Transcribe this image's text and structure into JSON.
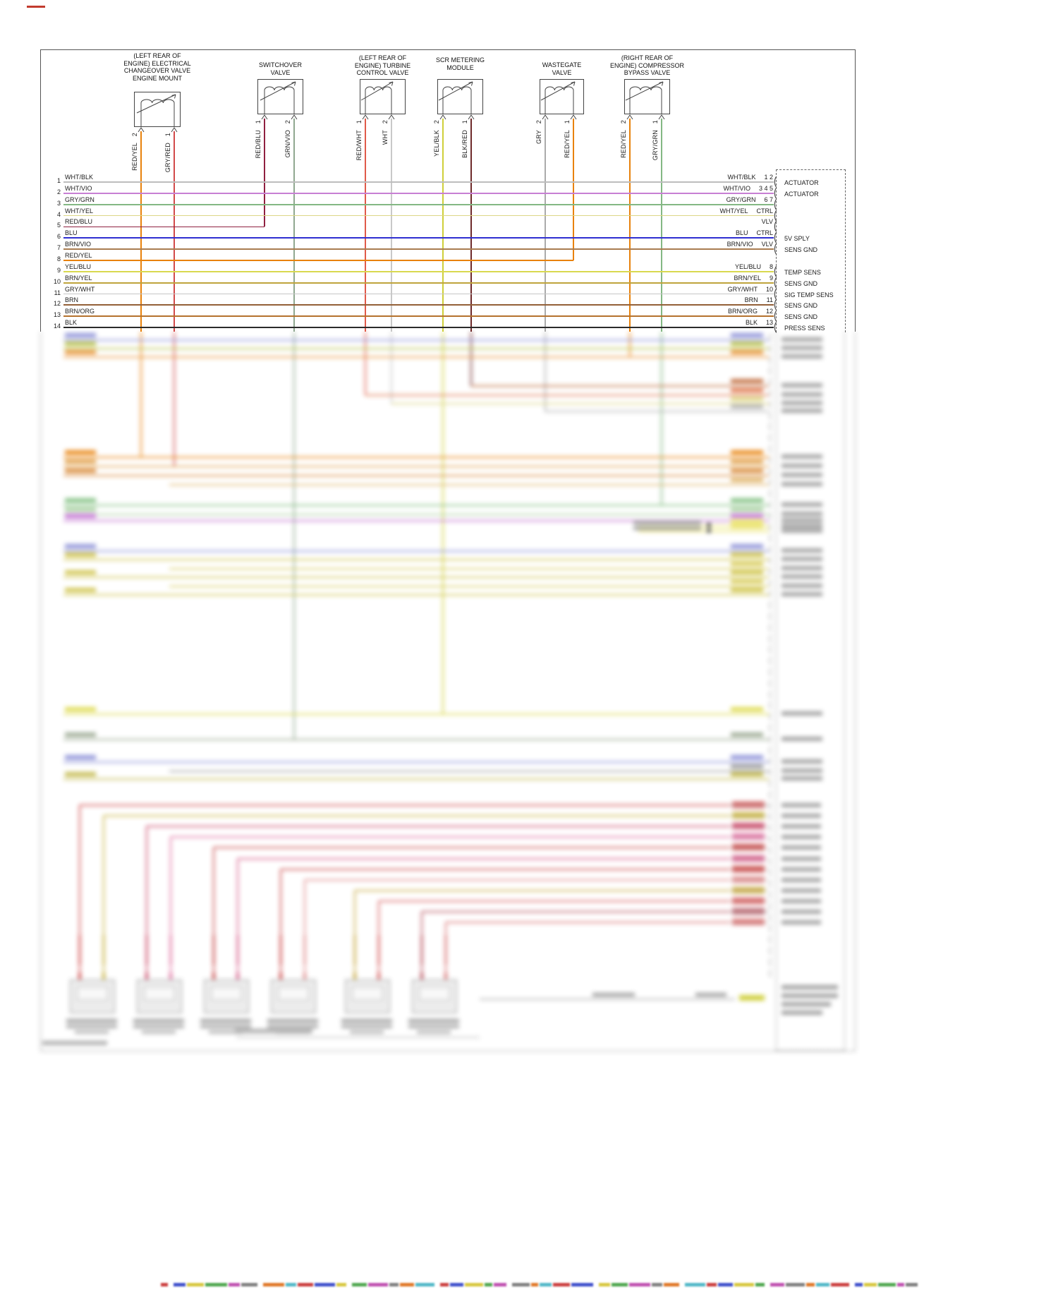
{
  "components": [
    {
      "title": "(LEFT REAR OF\nENGINE) ELECTRICAL\nCHANGEOVER VALVE\nENGINE MOUNT",
      "pins": [
        {
          "num": "2",
          "wire": "RED/YEL"
        },
        {
          "num": "1",
          "wire": "GRY/RED"
        }
      ]
    },
    {
      "title": "SWITCHOVER\nVALVE",
      "pins": [
        {
          "num": "1",
          "wire": "RED/BLU"
        },
        {
          "num": "2",
          "wire": "GRN/VIO"
        }
      ]
    },
    {
      "title": "(LEFT REAR OF\nENGINE) TURBINE\nCONTROL VALVE",
      "pins": [
        {
          "num": "1",
          "wire": "RED/WHT"
        },
        {
          "num": "2",
          "wire": "WHT"
        }
      ]
    },
    {
      "title": "SCR METERING\nMODULE",
      "pins": [
        {
          "num": "2",
          "wire": "YEL/BLK"
        },
        {
          "num": "1",
          "wire": "BLK/RED"
        }
      ]
    },
    {
      "title": "WASTEGATE\nVALVE",
      "pins": [
        {
          "num": "2",
          "wire": "GRY"
        },
        {
          "num": "1",
          "wire": "RED/YEL"
        }
      ]
    },
    {
      "title": "(RIGHT REAR OF\nENGINE) COMPRESSOR\nBYPASS VALVE",
      "pins": [
        {
          "num": "2",
          "wire": "RED/YEL"
        },
        {
          "num": "1",
          "wire": "GRY/GRN"
        }
      ]
    }
  ],
  "left_connector": {
    "rows": [
      {
        "pin": "1",
        "wire": "WHT/BLK"
      },
      {
        "pin": "2",
        "wire": "WHT/VIO"
      },
      {
        "pin": "3",
        "wire": "GRY/GRN"
      },
      {
        "pin": "4",
        "wire": "WHT/YEL"
      },
      {
        "pin": "5",
        "wire": "RED/BLU"
      },
      {
        "pin": "6",
        "wire": "BLU"
      },
      {
        "pin": "7",
        "wire": "BRN/VIO"
      },
      {
        "pin": "8",
        "wire": "RED/YEL"
      },
      {
        "pin": "9",
        "wire": "YEL/BLU"
      },
      {
        "pin": "10",
        "wire": "BRN/YEL"
      },
      {
        "pin": "11",
        "wire": "GRY/WHT"
      },
      {
        "pin": "12",
        "wire": "BRN"
      },
      {
        "pin": "13",
        "wire": "BRN/ORG"
      },
      {
        "pin": "14",
        "wire": "BLK"
      }
    ]
  },
  "right_connector": {
    "rows": [
      {
        "wire": "WHT/BLK",
        "pin": "1 2",
        "function": "ACTUATOR"
      },
      {
        "wire": "WHT/VIO",
        "pin": "3 4 5",
        "function": "ACTUATOR"
      },
      {
        "wire": "GRY/GRN",
        "pin": "6 7",
        "function": ""
      },
      {
        "wire": "WHT/YEL",
        "pin": "CTRL",
        "function": ""
      },
      {
        "wire": "",
        "pin": "VLV",
        "function": ""
      },
      {
        "wire": "BLU",
        "pin": "CTRL",
        "function": "5V SPLY"
      },
      {
        "wire": "BRN/VIO",
        "pin": "VLV",
        "function": "SENS GND"
      },
      {
        "wire": "",
        "pin": "",
        "function": ""
      },
      {
        "wire": "YEL/BLU",
        "pin": "8",
        "function": "TEMP SENS"
      },
      {
        "wire": "BRN/YEL",
        "pin": "9",
        "function": "SENS GND"
      },
      {
        "wire": "GRY/WHT",
        "pin": "10",
        "function": "SIG TEMP SENS"
      },
      {
        "wire": "BRN",
        "pin": "11",
        "function": "SENS GND"
      },
      {
        "wire": "BRN/ORG",
        "pin": "12",
        "function": "SENS GND"
      },
      {
        "wire": "BLK",
        "pin": "13",
        "function": "PRESS SENS"
      }
    ]
  },
  "wire_colors": {
    "WHT/BLK": "#bdbdbd",
    "WHT/VIO": "#c77fd4",
    "GRY/GRN": "#84b884",
    "WHT/YEL": "#ddd687",
    "RED/BLU": "#8f2040",
    "BLU": "#2f2fd1",
    "BRN/VIO": "#a97c50",
    "RED/YEL": "#e8820c",
    "YEL/BLU": "#d9d94f",
    "BRN/YEL": "#bfa43c",
    "GRY/WHT": "#c6c6c6",
    "BRN": "#936037",
    "BRN/ORG": "#b5722e",
    "BLK": "#2b2b2b",
    "GRY/RED": "#d24a4a",
    "GRN/VIO": "#90a890",
    "RED/WHT": "#e05a4a",
    "WHT": "#c9c9c9",
    "YEL/BLK": "#cfcf3a",
    "BLK/RED": "#6e2a2a",
    "GRY": "#ababab"
  }
}
